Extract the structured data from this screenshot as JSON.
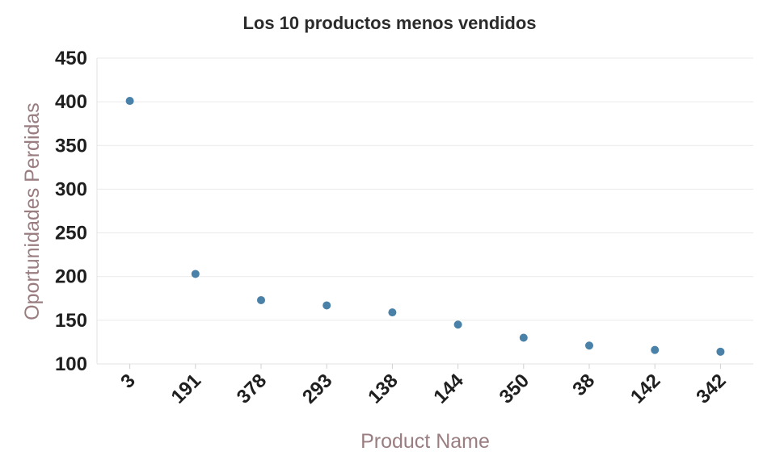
{
  "chart_data": {
    "type": "scatter",
    "title": "Los 10 productos menos vendidos",
    "xlabel": "Product Name",
    "ylabel": "Oportunidades Perdidas",
    "categories": [
      "3",
      "191",
      "378",
      "293",
      "138",
      "144",
      "350",
      "38",
      "142",
      "342"
    ],
    "values": [
      401,
      203,
      173,
      167,
      159,
      145,
      130,
      121,
      116,
      114
    ],
    "ylim": [
      100,
      450
    ],
    "yticks": [
      "100",
      "150",
      "200",
      "250",
      "300",
      "350",
      "400",
      "450"
    ],
    "grid": "horizontal",
    "legend": "none"
  },
  "colors": {
    "point": "#4a81a8",
    "axis_label": "#9a7d80",
    "title": "#2b2b2b"
  }
}
